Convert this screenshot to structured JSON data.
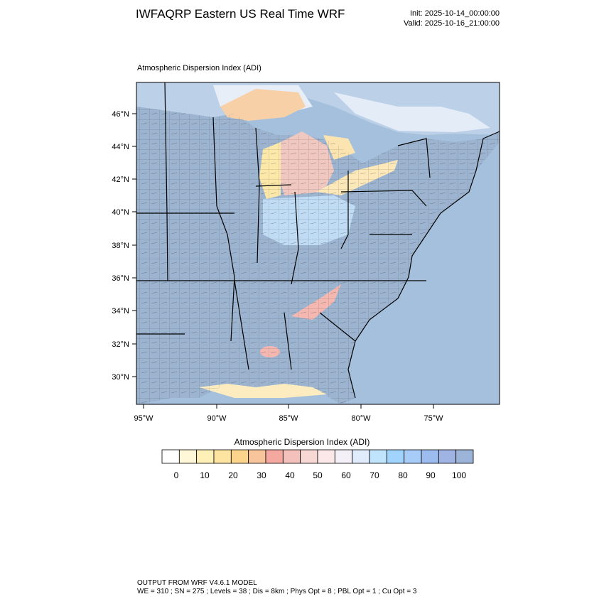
{
  "header": {
    "title": "IWFAQRP Eastern US Real Time WRF",
    "init": "Init: 2025-10-14_00:00:00",
    "valid": "Valid: 2025-10-16_21:00:00"
  },
  "plot": {
    "title": "Atmospheric Dispersion Index   (ADI)",
    "lat_labels": [
      "46°N",
      "44°N",
      "42°N",
      "40°N",
      "38°N",
      "36°N",
      "34°N",
      "32°N",
      "30°N"
    ],
    "lon_labels": [
      "95°W",
      "90°W",
      "85°W",
      "80°W",
      "75°W"
    ]
  },
  "colorbar": {
    "title": "Atmospheric Dispersion Index  (ADI)",
    "tick_labels": [
      "0",
      "10",
      "20",
      "30",
      "40",
      "50",
      "60",
      "70",
      "80",
      "90",
      "100"
    ],
    "colors": [
      "#ffffff",
      "#fff8d8",
      "#fff0b8",
      "#fde4a0",
      "#fcd48c",
      "#f8c49c",
      "#f4a8a0",
      "#f4c0bc",
      "#f8d8d4",
      "#fce8e8",
      "#f4f0f8",
      "#e0ecfc",
      "#c0e4fc",
      "#a0d4fc",
      "#a8ccf8",
      "#9cbcf0",
      "#a0b4e4",
      "#9cb4d8"
    ]
  },
  "map_colors": {
    "ocean": "#a4c0dc",
    "land_high": "#9cb4d0",
    "michigan": "#f0c8c0",
    "lake_coast": "#fce8a8",
    "ohio_valley": "#c0dcf4",
    "southeast_spot": "#f4b8b0"
  },
  "footer": {
    "line1": "OUTPUT FROM WRF V4.6.1 MODEL",
    "line2": "WE = 310 ; SN = 275 ; Levels = 38 ; Dis = 8km ; Phys Opt = 8 ; PBL Opt = 1 ; Cu Opt = 3"
  }
}
